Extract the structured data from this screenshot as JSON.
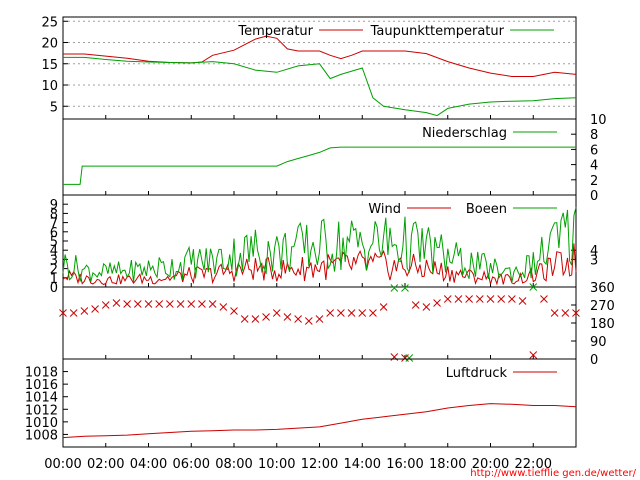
{
  "time_labels": [
    "00:00",
    "02:00",
    "04:00",
    "06:00",
    "08:00",
    "10:00",
    "12:00",
    "14:00",
    "16:00",
    "18:00",
    "20:00",
    "22:00"
  ],
  "credit": "http://www.tiefflie gen.de/wetter/",
  "colors": {
    "red": "#cc0000",
    "green": "#00a000",
    "grid": "#a0a0a0",
    "frame": "#000000"
  },
  "chart_data": [
    {
      "type": "line",
      "x_unit": "hour",
      "xlim": [
        0,
        24
      ],
      "ylim": [
        2,
        26
      ],
      "y_ticks": [
        5,
        10,
        15,
        20,
        25
      ],
      "series": [
        {
          "name": "Temperatur",
          "color": "#cc0000",
          "x": [
            0,
            1,
            2,
            3,
            4,
            5,
            6,
            6.5,
            7,
            8,
            9,
            9.5,
            10,
            10.5,
            11,
            12,
            12.5,
            13,
            13.5,
            14,
            15,
            16,
            17,
            18,
            19,
            20,
            21,
            22,
            23,
            24
          ],
          "y": [
            17.3,
            17.3,
            16.8,
            16.3,
            15.6,
            15.3,
            15.2,
            15.4,
            17.0,
            18.2,
            20.8,
            21.5,
            21.0,
            18.5,
            18.0,
            18.0,
            17.0,
            16.2,
            17.0,
            18.0,
            18.0,
            18.0,
            17.4,
            15.5,
            14.0,
            12.8,
            12.0,
            12.0,
            13.0,
            12.5
          ]
        },
        {
          "name": "Taupunkttemperatur",
          "color": "#00a000",
          "x": [
            0,
            1,
            2,
            3,
            4,
            5,
            6,
            7,
            8,
            9,
            10,
            11,
            12,
            12.5,
            13,
            14,
            14.5,
            15,
            16,
            17,
            17.5,
            18,
            19,
            20,
            21,
            22,
            23,
            24
          ],
          "y": [
            16.5,
            16.5,
            16.0,
            15.6,
            15.4,
            15.3,
            15.2,
            15.5,
            15.0,
            13.5,
            13.0,
            14.5,
            15.0,
            11.5,
            12.5,
            14.0,
            7.0,
            5.0,
            4.2,
            3.5,
            2.8,
            4.5,
            5.5,
            6.0,
            6.2,
            6.3,
            6.8,
            7.0
          ]
        }
      ]
    },
    {
      "type": "line",
      "x_unit": "hour",
      "xlim": [
        0,
        24
      ],
      "ylim": [
        0,
        10
      ],
      "y_ticks": [
        0,
        2,
        4,
        6,
        8,
        10
      ],
      "y_axis_side": "right",
      "series": [
        {
          "name": "Niederschlag",
          "color": "#00a000",
          "x": [
            0,
            0.8,
            0.9,
            10.0,
            10.5,
            11.0,
            11.5,
            12.0,
            12.5,
            13.0,
            14.0,
            24.0
          ],
          "y": [
            1.4,
            1.4,
            3.8,
            3.8,
            4.4,
            4.8,
            5.2,
            5.6,
            6.2,
            6.3,
            6.3,
            6.3
          ]
        }
      ]
    },
    {
      "type": "line",
      "x_unit": "hour",
      "xlim": [
        0,
        24
      ],
      "ylim": [
        0,
        10
      ],
      "y_ticks_left": [
        0,
        1,
        2,
        3,
        4,
        5,
        6,
        7,
        8,
        9
      ],
      "y_ticks_right": [
        3,
        4
      ],
      "series": [
        {
          "name": "Wind",
          "color": "#cc0000",
          "x": [
            0,
            1,
            2,
            3,
            4,
            5,
            6,
            7,
            8,
            9,
            10,
            11,
            12,
            13,
            14,
            15,
            16,
            17,
            18,
            19,
            20,
            21,
            22,
            23,
            24
          ],
          "y": [
            1.2,
            0.9,
            0.8,
            0.8,
            0.9,
            1.0,
            1.3,
            1.4,
            1.8,
            2.0,
            1.8,
            2.0,
            2.2,
            2.3,
            2.4,
            2.3,
            2.2,
            2.0,
            1.6,
            1.2,
            1.0,
            0.8,
            1.2,
            2.2,
            3.0
          ]
        },
        {
          "name": "Boeen",
          "color": "#00a000",
          "x": [
            0,
            1,
            2,
            3,
            4,
            5,
            6,
            7,
            8,
            9,
            10,
            11,
            12,
            13,
            14,
            15,
            16,
            17,
            18,
            19,
            20,
            21,
            22,
            23,
            24
          ],
          "y": [
            2.5,
            1.8,
            1.6,
            1.7,
            2.0,
            2.2,
            2.7,
            2.8,
            3.5,
            4.0,
            3.8,
            4.2,
            4.5,
            4.6,
            4.8,
            4.8,
            4.6,
            4.2,
            3.2,
            2.5,
            2.0,
            1.6,
            2.4,
            4.8,
            6.0
          ]
        }
      ]
    },
    {
      "type": "scatter",
      "x_unit": "hour",
      "xlim": [
        0,
        24
      ],
      "ylim": [
        0,
        360
      ],
      "y_ticks": [
        0,
        90,
        180,
        270,
        360
      ],
      "y_axis_side": "right",
      "series": [
        {
          "color": "#cc0000",
          "x": [
            0,
            0.5,
            1,
            1.5,
            2,
            2.5,
            3,
            3.5,
            4,
            4.5,
            5,
            5.5,
            6,
            6.5,
            7,
            7.5,
            8,
            8.5,
            9,
            9.5,
            10,
            10.5,
            11,
            11.5,
            12,
            12.5,
            13,
            13.5,
            14,
            14.5,
            15,
            15.5,
            16,
            16.5,
            17,
            17.5,
            18,
            18.5,
            19,
            19.5,
            20,
            20.5,
            21,
            21.5,
            22,
            22.5,
            23,
            23.5,
            24
          ],
          "y": [
            230,
            230,
            240,
            250,
            270,
            280,
            275,
            275,
            275,
            275,
            275,
            275,
            275,
            275,
            275,
            260,
            240,
            200,
            200,
            210,
            230,
            210,
            200,
            190,
            200,
            230,
            230,
            230,
            230,
            230,
            260,
            10,
            5,
            270,
            260,
            280,
            300,
            300,
            300,
            300,
            300,
            300,
            300,
            290,
            20,
            300,
            230,
            230,
            230
          ]
        },
        {
          "color": "#00a000",
          "x": [
            15.5,
            16,
            16.2,
            22
          ],
          "y": [
            355,
            355,
            5,
            360
          ]
        }
      ]
    },
    {
      "type": "line",
      "x_unit": "hour",
      "xlim": [
        0,
        24
      ],
      "ylim": [
        1006,
        1020
      ],
      "y_ticks": [
        1008,
        1010,
        1012,
        1014,
        1016,
        1018
      ],
      "series": [
        {
          "name": "Luftdruck",
          "color": "#cc0000",
          "x": [
            0,
            1,
            2,
            3,
            4,
            5,
            6,
            7,
            8,
            9,
            10,
            11,
            12,
            13,
            14,
            15,
            16,
            17,
            18,
            19,
            20,
            21,
            22,
            23,
            24
          ],
          "y": [
            1007.5,
            1007.7,
            1007.8,
            1007.9,
            1008.1,
            1008.3,
            1008.5,
            1008.6,
            1008.7,
            1008.7,
            1008.8,
            1009.0,
            1009.2,
            1009.8,
            1010.4,
            1010.8,
            1011.2,
            1011.6,
            1012.2,
            1012.6,
            1012.9,
            1012.8,
            1012.6,
            1012.6,
            1012.4
          ]
        }
      ]
    }
  ]
}
